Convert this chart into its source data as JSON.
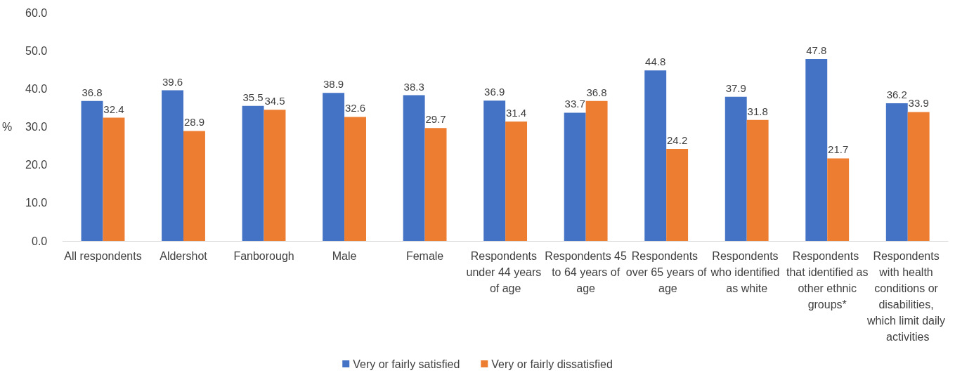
{
  "chart_data": {
    "type": "bar",
    "ylabel": "%",
    "categories": [
      "All respondents",
      "Aldershot",
      "Fanborough",
      "Male",
      "Female",
      "Respondents under 44 years of age",
      "Respondents 45 to 64 years of age",
      "Respondents over 65 years of age",
      "Respondents who identified as white",
      "Respondents that identified as other ethnic groups*",
      "Respondents with health conditions or disabilities, which limit daily activities"
    ],
    "series": [
      {
        "name": "Very or fairly satisfied",
        "color": "#4472c4",
        "values": [
          36.8,
          39.6,
          35.5,
          38.9,
          38.3,
          36.9,
          33.7,
          44.8,
          37.9,
          47.8,
          36.2
        ]
      },
      {
        "name": "Very or fairly dissatisfied",
        "color": "#ed7d31",
        "values": [
          32.4,
          28.9,
          34.5,
          32.6,
          29.7,
          31.4,
          36.8,
          24.2,
          31.8,
          21.7,
          33.9
        ]
      }
    ],
    "ylim": [
      0,
      60
    ],
    "yticks": [
      {
        "value": 0,
        "label": "0.0"
      },
      {
        "value": 10,
        "label": "10.0"
      },
      {
        "value": 20,
        "label": "20.0"
      },
      {
        "value": 30,
        "label": "30.0"
      },
      {
        "value": 40,
        "label": "40.0"
      },
      {
        "value": 50,
        "label": "50.0"
      },
      {
        "value": 60,
        "label": "60.0"
      }
    ],
    "grid": false,
    "legend": "bottom",
    "data_labels": true
  }
}
